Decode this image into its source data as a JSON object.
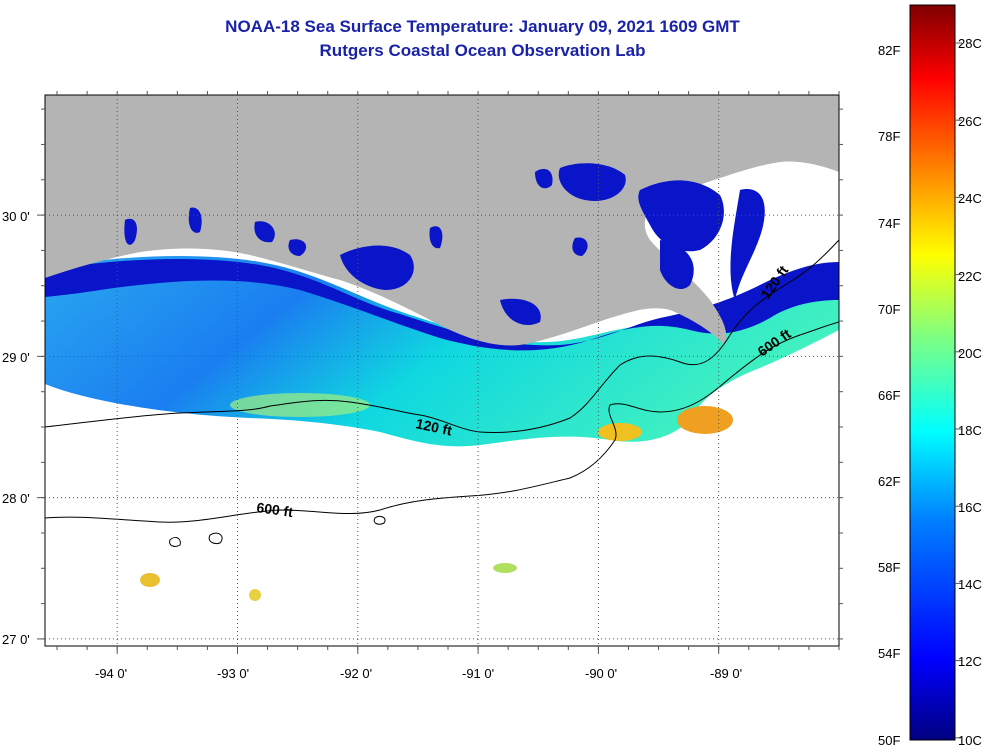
{
  "title": {
    "line1": "NOAA-18 Sea Surface Temperature:  January 09, 2021 1609 GMT",
    "line2": "Rutgers Coastal Ocean Observation Lab"
  },
  "axes": {
    "lon_labels": [
      "-94 0'",
      "-93 0'",
      "-92 0'",
      "-91 0'",
      "-90 0'",
      "-89 0'"
    ],
    "lon_values": [
      -94,
      -93,
      -92,
      -91,
      -90,
      -89
    ],
    "lat_labels": [
      "30 0'",
      "29 0'",
      "28 0'",
      "27 0'"
    ],
    "lat_values": [
      30,
      29,
      28,
      27
    ],
    "lon_range": [
      -94.6,
      -88.0
    ],
    "lat_range": [
      26.95,
      30.85
    ],
    "gridlines": "dotted"
  },
  "contours": [
    {
      "label": "120 ft"
    },
    {
      "label": "120 ft"
    },
    {
      "label": "600 ft"
    },
    {
      "label": "600 ft"
    }
  ],
  "colorbar": {
    "fahrenheit_labels": [
      "82F",
      "78F",
      "74F",
      "70F",
      "66F",
      "62F",
      "58F",
      "54F",
      "50F"
    ],
    "celsius_labels": [
      "28C",
      "26C",
      "24C",
      "22C",
      "20C",
      "18C",
      "16C",
      "14C",
      "12C",
      "10C"
    ],
    "range_c": [
      10,
      29
    ],
    "colors": [
      "#00007f",
      "#0000ff",
      "#0080ff",
      "#00ffff",
      "#80ff80",
      "#ffff00",
      "#ff8000",
      "#ff0000",
      "#7f0000"
    ]
  },
  "colors": {
    "land": "#b4b4b4",
    "title": "#1a23a8",
    "no_data": "#ffffff"
  }
}
